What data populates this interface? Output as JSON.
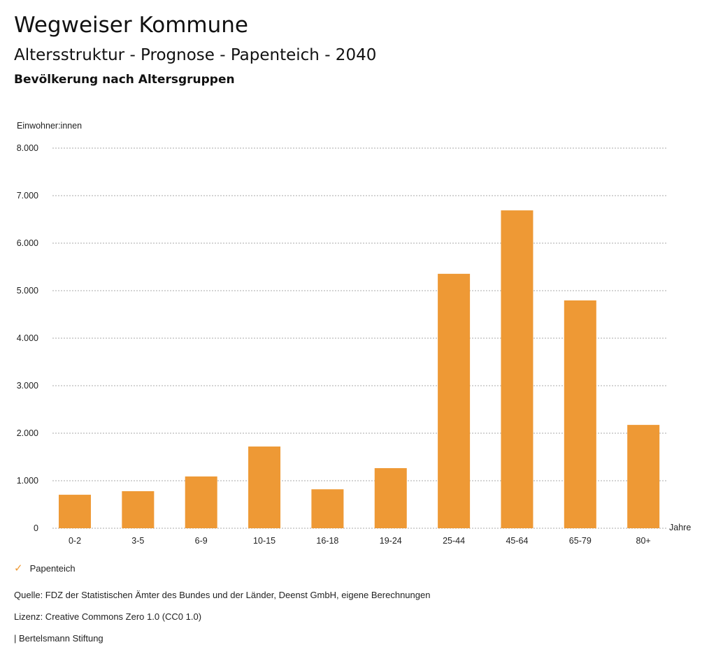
{
  "header": {
    "title": "Wegweiser Kommune",
    "subtitle": "Altersstruktur - Prognose - Papenteich - 2040",
    "chart_heading": "Bevölkerung nach Altersgruppen"
  },
  "chart_data": {
    "type": "bar",
    "title": "Bevölkerung nach Altersgruppen",
    "ylabel": "Einwohner:innen",
    "xlabel": "Jahre",
    "ylim": [
      0,
      8000
    ],
    "yticks": [
      0,
      1000,
      2000,
      3000,
      4000,
      5000,
      6000,
      7000,
      8000
    ],
    "ytick_labels": [
      "0",
      "1.000",
      "2.000",
      "3.000",
      "4.000",
      "5.000",
      "6.000",
      "7.000",
      "8.000"
    ],
    "grid": true,
    "categories": [
      "0-2",
      "3-5",
      "6-9",
      "10-15",
      "16-18",
      "19-24",
      "25-44",
      "45-64",
      "65-79",
      "80+"
    ],
    "series": [
      {
        "name": "Papenteich",
        "color": "#ee9935",
        "values": [
          705,
          780,
          1090,
          1720,
          820,
          1265,
          5355,
          6690,
          4795,
          2175
        ]
      }
    ],
    "legend": "bottom-left"
  },
  "footer": {
    "source": "Quelle: FDZ der Statistischen Ämter des Bundes und der Länder, Deenst GmbH, eigene Berechnungen",
    "license": "Lizenz: Creative Commons Zero 1.0 (CC0 1.0)",
    "publisher": "| Bertelsmann Stiftung"
  }
}
